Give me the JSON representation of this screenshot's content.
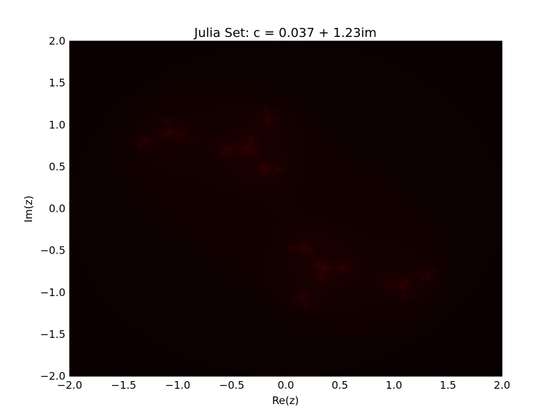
{
  "chart_data": {
    "type": "heatmap",
    "title": "Julia Set: c = 0.037 + 1.23im",
    "xlabel": "Re(z)",
    "ylabel": "Im(z)",
    "xlim": [
      -2.0,
      2.0
    ],
    "ylim": [
      -2.0,
      2.0
    ],
    "xticks": [
      -2.0,
      -1.5,
      -1.0,
      -0.5,
      0.0,
      0.5,
      1.0,
      1.5,
      2.0
    ],
    "yticks": [
      -2.0,
      -1.5,
      -1.0,
      -0.5,
      0.0,
      0.5,
      1.0,
      1.5,
      2.0
    ],
    "xtick_labels": [
      "−2.0",
      "−1.5",
      "−1.0",
      "−0.5",
      "0.0",
      "0.5",
      "1.0",
      "1.5",
      "2.0"
    ],
    "ytick_labels": [
      "−2.0",
      "−1.5",
      "−1.0",
      "−0.5",
      "0.0",
      "0.5",
      "1.0",
      "1.5",
      "2.0"
    ],
    "c_real": 0.037,
    "c_imag": 1.23,
    "max_iter": 200,
    "escape_radius": 2.0,
    "grid": false,
    "colors": {
      "background": "#0a0000",
      "low": "#1a0000",
      "mid": "#7a0000",
      "high": "#ff1a00",
      "peak": "#ffdd44",
      "frame": "#000000"
    }
  }
}
